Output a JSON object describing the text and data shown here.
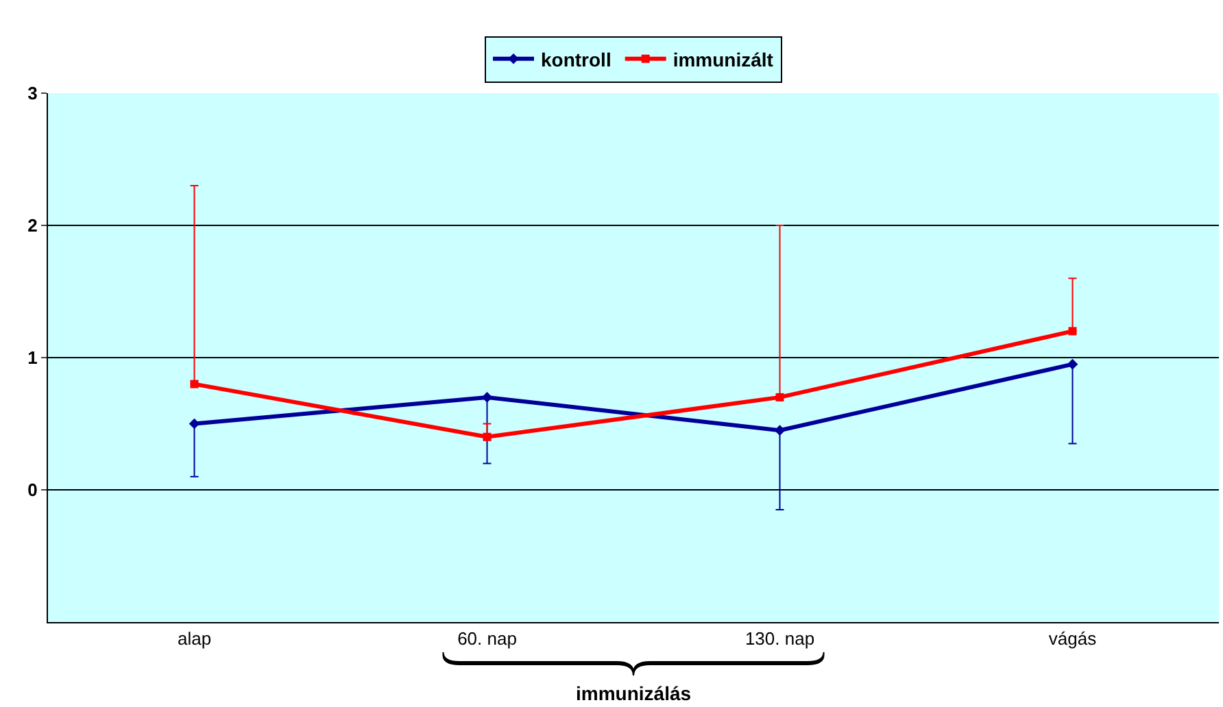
{
  "chart_data": {
    "type": "line",
    "categories": [
      "alap",
      "60. nap",
      "130. nap",
      "vágás"
    ],
    "series": [
      {
        "name": "kontroll",
        "color": "#000099",
        "values": [
          0.5,
          0.7,
          0.45,
          0.95
        ],
        "errors": [
          [
            0.1,
            0.5
          ],
          [
            0.2,
            0.7
          ],
          [
            -0.15,
            0.45
          ],
          [
            0.35,
            0.95
          ]
        ],
        "marker": "diamond"
      },
      {
        "name": "immunizált",
        "color": "#ff0000",
        "values": [
          0.8,
          0.4,
          0.7,
          1.2
        ],
        "errors": [
          [
            0.8,
            2.3
          ],
          [
            0.4,
            0.5
          ],
          [
            0.7,
            2.0
          ],
          [
            1.2,
            1.6
          ]
        ],
        "marker": "square"
      }
    ],
    "ylim": [
      -1,
      3
    ],
    "yticks": [
      0,
      1,
      2,
      3
    ],
    "grid": "y",
    "legend": "top",
    "line_style": "solid",
    "annotations": [
      "immunizálás"
    ]
  }
}
